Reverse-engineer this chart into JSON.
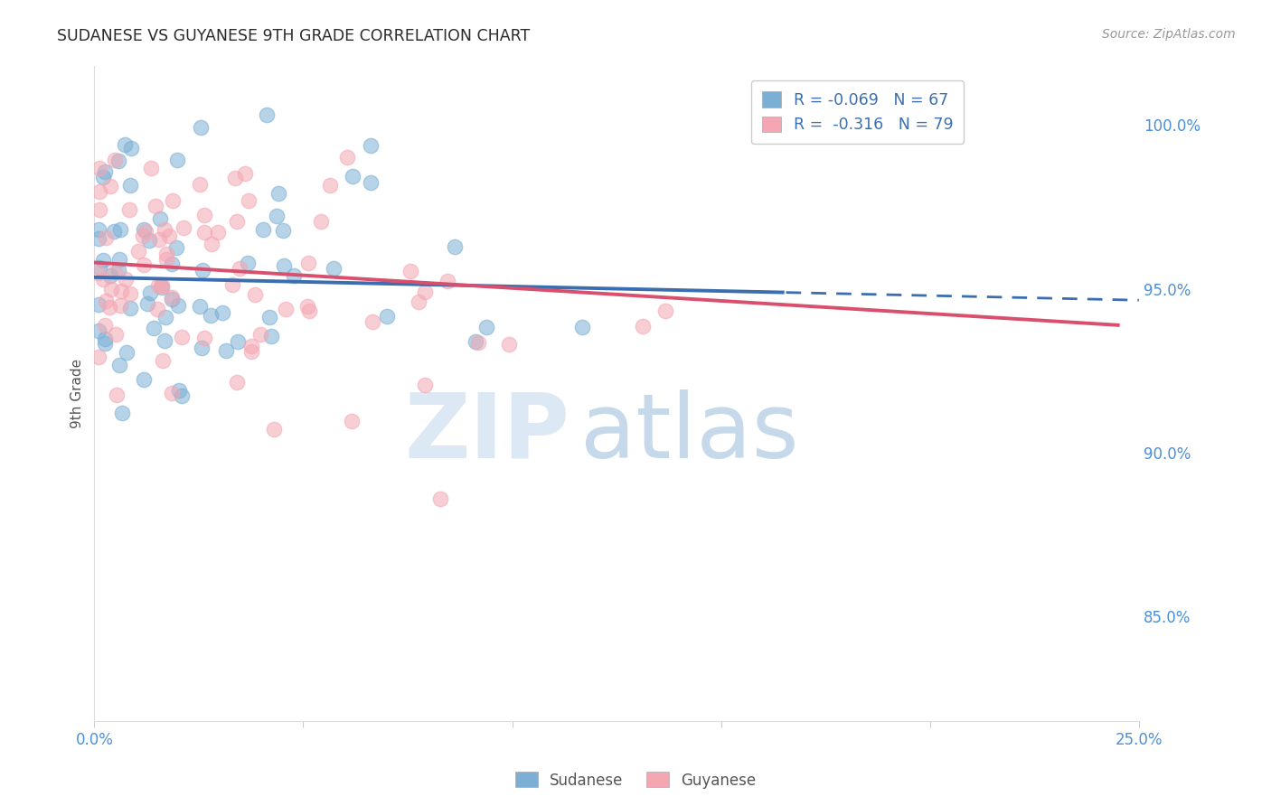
{
  "title": "SUDANESE VS GUYANESE 9TH GRADE CORRELATION CHART",
  "source": "Source: ZipAtlas.com",
  "ylabel": "9th Grade",
  "ytick_labels": [
    "85.0%",
    "90.0%",
    "95.0%",
    "100.0%"
  ],
  "ytick_values": [
    0.85,
    0.9,
    0.95,
    1.0
  ],
  "xlim": [
    0.0,
    0.25
  ],
  "ylim": [
    0.818,
    1.018
  ],
  "legend_line1": "R = -0.069   N = 67",
  "legend_line2": "R =  -0.316   N = 79",
  "blue_color": "#7BAFD4",
  "pink_color": "#F4A7B3",
  "line_blue_color": "#3B6EAF",
  "line_pink_color": "#D94F6E",
  "bg_color": "#FFFFFF",
  "grid_color": "#CCCCCC",
  "title_color": "#2a2a2a",
  "tick_label_color": "#4A90D9",
  "ylabel_color": "#555555",
  "source_color": "#999999",
  "watermark_zip_color": "#DCE8F4",
  "watermark_atlas_color": "#C5D9EA",
  "legend_text_color": "#3B6EAF",
  "bottom_legend_color": "#555555",
  "blue_line_solid_end": 0.165,
  "pink_line_end": 0.245,
  "blue_intercept": 0.9535,
  "blue_slope": -0.028,
  "pink_intercept": 0.958,
  "pink_slope": -0.078
}
